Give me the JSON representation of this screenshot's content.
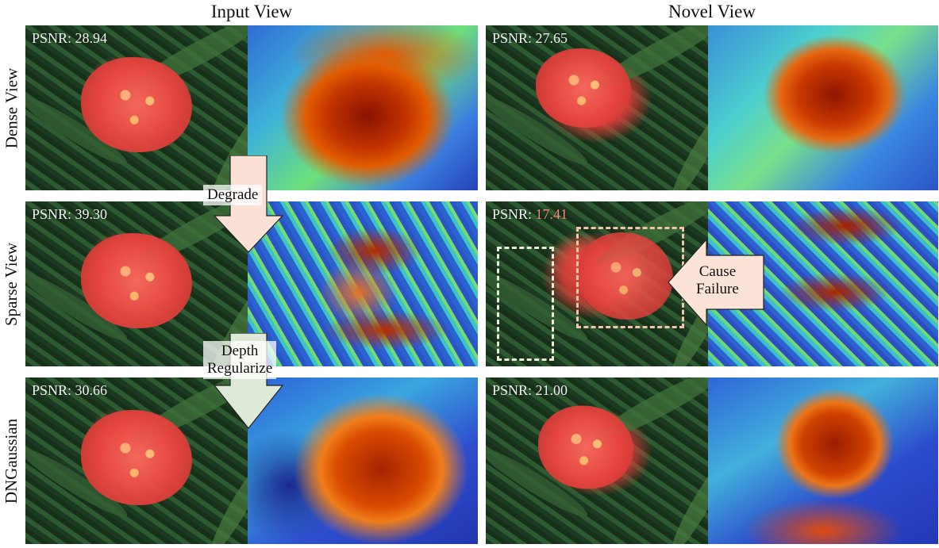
{
  "columns": {
    "input_title": "Input View",
    "novel_title": "Novel View"
  },
  "rows": [
    {
      "label": "Dense View",
      "input_psnr_label": "PSNR:",
      "input_psnr": "28.94",
      "novel_psnr_label": "PSNR:",
      "novel_psnr": "27.65"
    },
    {
      "label": "Sparse View",
      "input_psnr_label": "PSNR:",
      "input_psnr": "39.30",
      "novel_psnr_label": "PSNR:",
      "novel_psnr": "17.41"
    },
    {
      "label": "DNGaussian",
      "input_psnr_label": "PSNR:",
      "input_psnr": "30.66",
      "novel_psnr_label": "PSNR:",
      "novel_psnr": "21.00"
    }
  ],
  "annotations": {
    "degrade": "Degrade",
    "depth_regularize_line1": "Depth",
    "depth_regularize_line2": "Regularize",
    "cause_failure_line1": "Cause",
    "cause_failure_line2": "Failure"
  },
  "colors": {
    "degrade_arrow": "#fbe0d6",
    "regularize_arrow": "#dfe9d8",
    "failure_arrow": "#fbe3d8",
    "failure_box": "#f3c4a8",
    "neutral_box": "#e8ecd8",
    "failure_psnr": "#f08a80"
  }
}
